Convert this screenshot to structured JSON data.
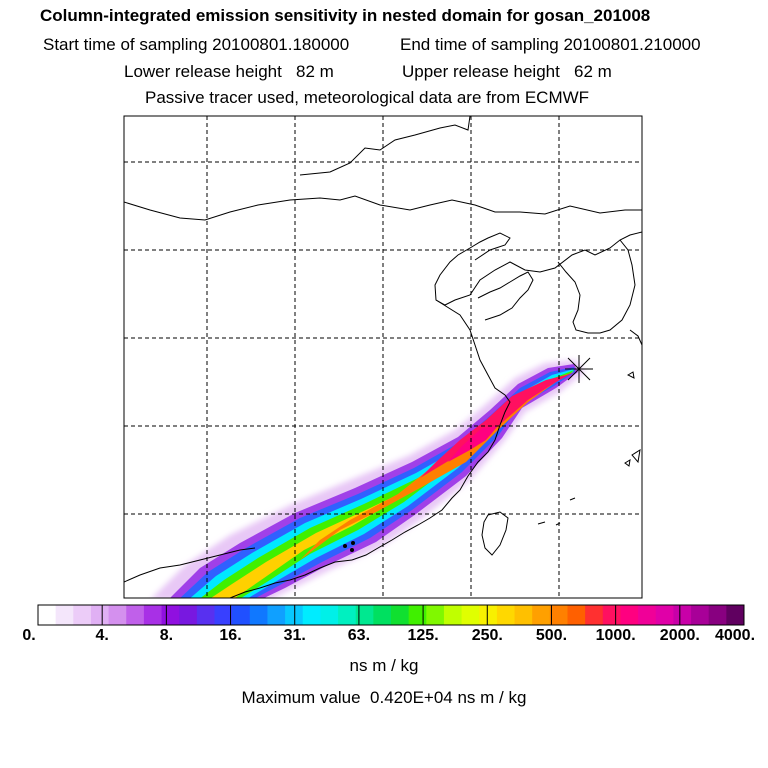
{
  "title": "Column-integrated emission sensitivity in nested domain for gosan_201008",
  "start_time": "Start time of sampling 20100801.180000",
  "end_time": "End time of sampling 20100801.210000",
  "lower_height": "Lower release height   82 m",
  "upper_height": "Upper release height   62 m",
  "tracer_note": "Passive tracer used, meteorological data are from ECMWF",
  "colorbar": {
    "tick_labels": [
      "0.",
      "4.",
      "8.",
      "16.",
      "31.",
      "63.",
      "125.",
      "250.",
      "500.",
      "1000.",
      "2000.",
      "4000."
    ],
    "colors": [
      "#ffffff",
      "#f4e6fb",
      "#ecccf8",
      "#e0b0f4",
      "#d490ee",
      "#c060ea",
      "#a830e6",
      "#9010e0",
      "#7818e0",
      "#5830f0",
      "#3840ff",
      "#2050ff",
      "#1078ff",
      "#10a0ff",
      "#08c8ff",
      "#00ecff",
      "#00f0e8",
      "#00f0c0",
      "#00e890",
      "#00e060",
      "#10e030",
      "#40f000",
      "#80f800",
      "#c0ff00",
      "#e0ff00",
      "#f8f000",
      "#ffd800",
      "#ffc000",
      "#ffa000",
      "#ff8000",
      "#ff6000",
      "#ff3030",
      "#ff1060",
      "#ff0080",
      "#f00098",
      "#e000a8",
      "#c800a8",
      "#a80098",
      "#880080",
      "#600060"
    ],
    "units": "ns m / kg",
    "max_value": "Maximum value  0.420E+04 ns m / kg"
  },
  "release_site": "gosan"
}
